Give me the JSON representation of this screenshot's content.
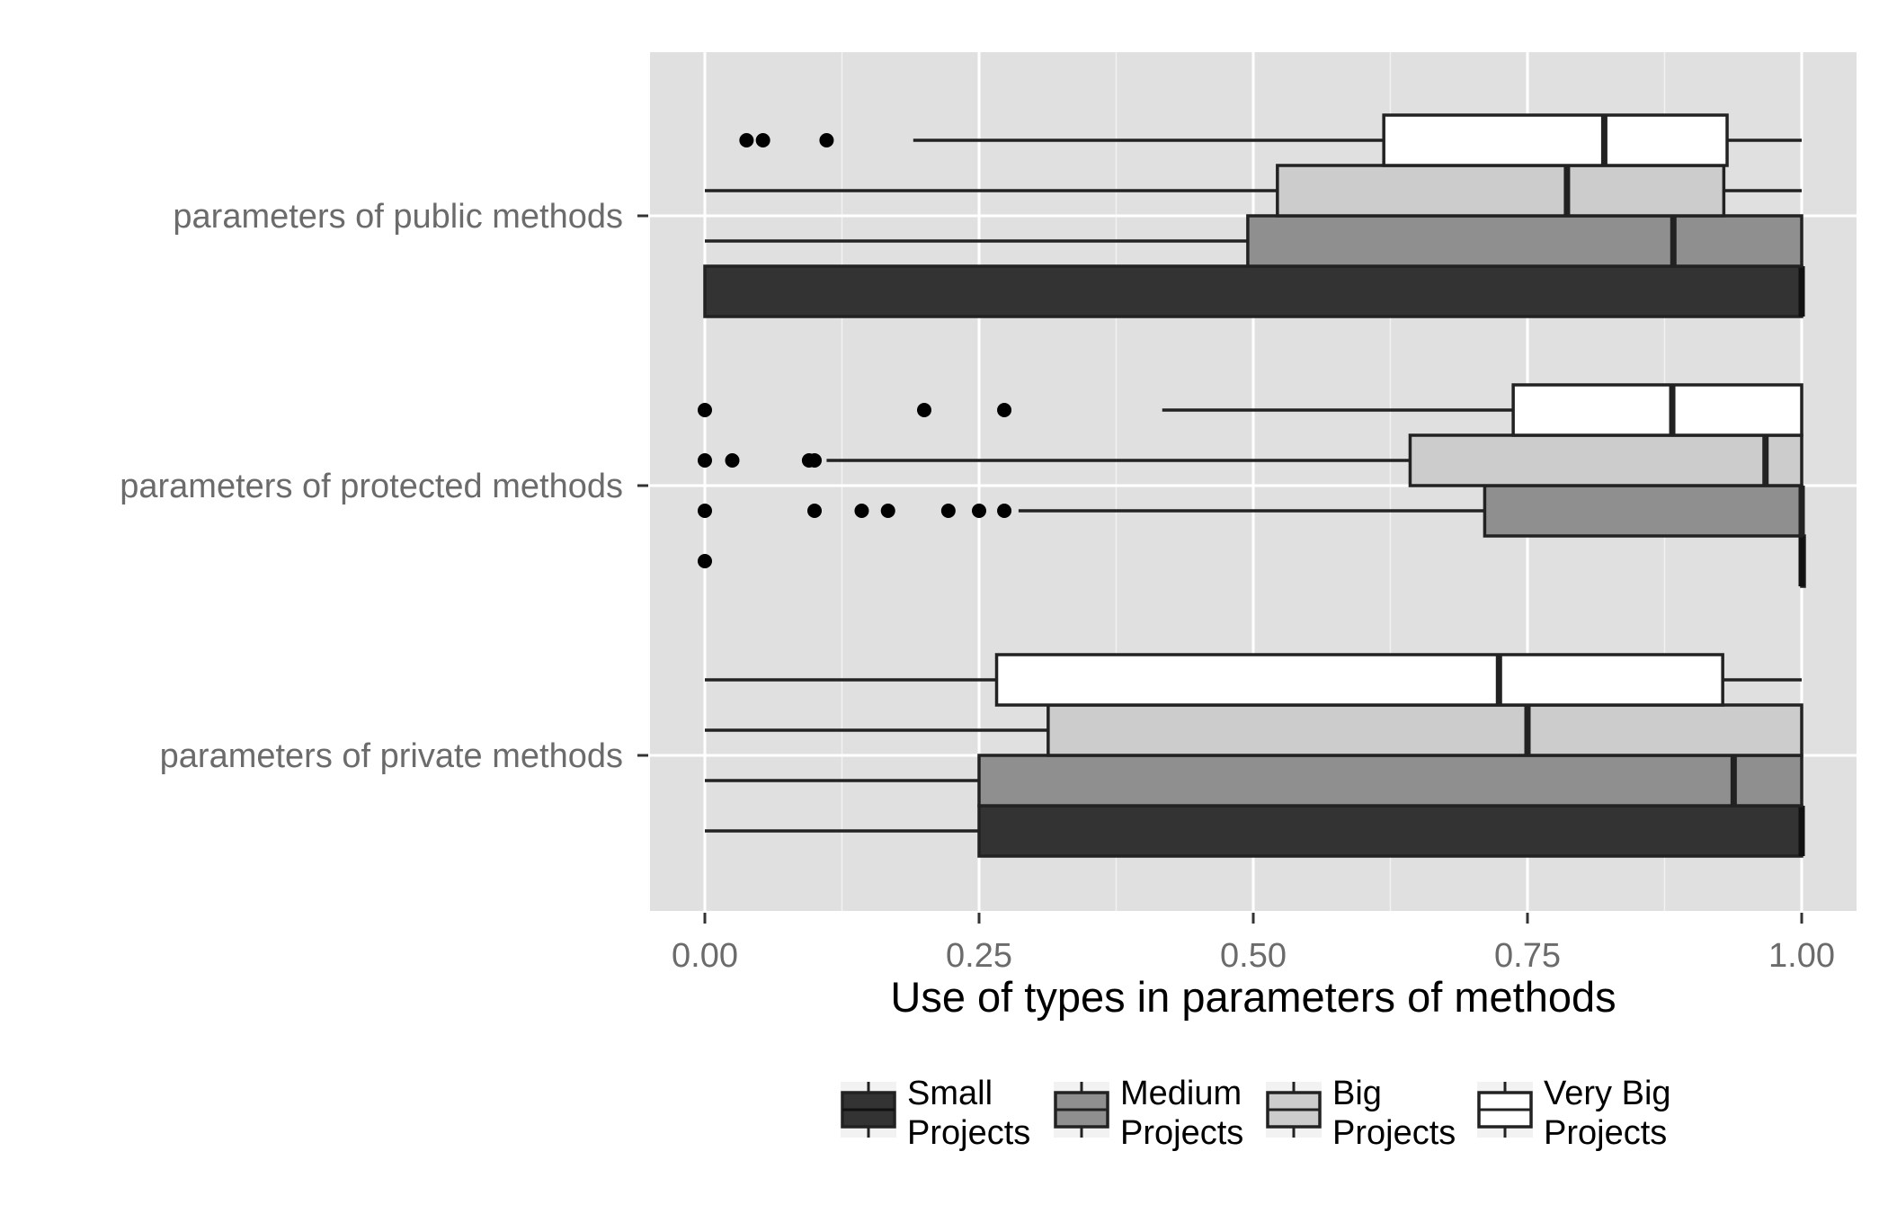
{
  "chart_data": {
    "type": "boxplot",
    "orientation": "horizontal",
    "title": "",
    "xlabel": "Use of types in parameters of methods",
    "ylabel": "",
    "xlim": [
      -0.05,
      1.05
    ],
    "x_ticks": [
      {
        "value": 0.0,
        "label": "0.00"
      },
      {
        "value": 0.25,
        "label": "0.25"
      },
      {
        "value": 0.5,
        "label": "0.50"
      },
      {
        "value": 0.75,
        "label": "0.75"
      },
      {
        "value": 1.0,
        "label": "1.00"
      }
    ],
    "grid": true,
    "legend_position": "bottom",
    "categories": [
      "parameters of public methods",
      "parameters of protected methods",
      "parameters of private methods"
    ],
    "series": [
      {
        "name": "Small Projects",
        "legend_lines": [
          "Small",
          "Projects"
        ],
        "fill": "#333333",
        "median_color": "#111111",
        "boxes": [
          {
            "category": "parameters of public methods",
            "whisker_low": 0.0,
            "q1": 0.0,
            "median": 1.0,
            "q3": 1.0,
            "whisker_high": 1.0,
            "outliers": []
          },
          {
            "category": "parameters of protected methods",
            "whisker_low": 1.0,
            "q1": 1.0,
            "median": 1.0,
            "q3": 1.0,
            "whisker_high": 1.0,
            "outliers": [
              0.0
            ]
          },
          {
            "category": "parameters of private methods",
            "whisker_low": 0.0,
            "q1": 0.25,
            "median": 1.0,
            "q3": 1.0,
            "whisker_high": 1.0,
            "outliers": []
          }
        ]
      },
      {
        "name": "Medium Projects",
        "legend_lines": [
          "Medium",
          "Projects"
        ],
        "fill": "#8f8f8f",
        "median_color": "#222222",
        "boxes": [
          {
            "category": "parameters of public methods",
            "whisker_low": 0.0,
            "q1": 0.495,
            "median": 0.883,
            "q3": 1.0,
            "whisker_high": 1.0,
            "outliers": []
          },
          {
            "category": "parameters of protected methods",
            "whisker_low": 0.286,
            "q1": 0.711,
            "median": 1.0,
            "q3": 1.0,
            "whisker_high": 1.0,
            "outliers": [
              0.0,
              0.1,
              0.143,
              0.167,
              0.222,
              0.25,
              0.273
            ]
          },
          {
            "category": "parameters of private methods",
            "whisker_low": 0.0,
            "q1": 0.25,
            "median": 0.938,
            "q3": 1.0,
            "whisker_high": 1.0,
            "outliers": []
          }
        ]
      },
      {
        "name": "Big Projects",
        "legend_lines": [
          "Big",
          "Projects"
        ],
        "fill": "#cccccc",
        "median_color": "#222222",
        "boxes": [
          {
            "category": "parameters of public methods",
            "whisker_low": 0.0,
            "q1": 0.522,
            "median": 0.786,
            "q3": 0.929,
            "whisker_high": 1.0,
            "outliers": []
          },
          {
            "category": "parameters of protected methods",
            "whisker_low": 0.111,
            "q1": 0.643,
            "median": 0.967,
            "q3": 1.0,
            "whisker_high": 1.0,
            "outliers": [
              0.0,
              0.025,
              0.095,
              0.1
            ]
          },
          {
            "category": "parameters of private methods",
            "whisker_low": 0.0,
            "q1": 0.313,
            "median": 0.75,
            "q3": 1.0,
            "whisker_high": 1.0,
            "outliers": []
          }
        ]
      },
      {
        "name": "Very Big Projects",
        "legend_lines": [
          "Very Big",
          "Projects"
        ],
        "fill": "#ffffff",
        "median_color": "#222222",
        "boxes": [
          {
            "category": "parameters of public methods",
            "whisker_low": 0.19,
            "q1": 0.619,
            "median": 0.82,
            "q3": 0.932,
            "whisker_high": 1.0,
            "outliers": [
              0.038,
              0.053,
              0.111
            ]
          },
          {
            "category": "parameters of protected methods",
            "whisker_low": 0.417,
            "q1": 0.737,
            "median": 0.882,
            "q3": 1.0,
            "whisker_high": 1.0,
            "outliers": [
              0.0,
              0.2,
              0.273
            ]
          },
          {
            "category": "parameters of private methods",
            "whisker_low": 0.0,
            "q1": 0.266,
            "median": 0.724,
            "q3": 0.928,
            "whisker_high": 1.0,
            "outliers": []
          }
        ]
      }
    ]
  }
}
